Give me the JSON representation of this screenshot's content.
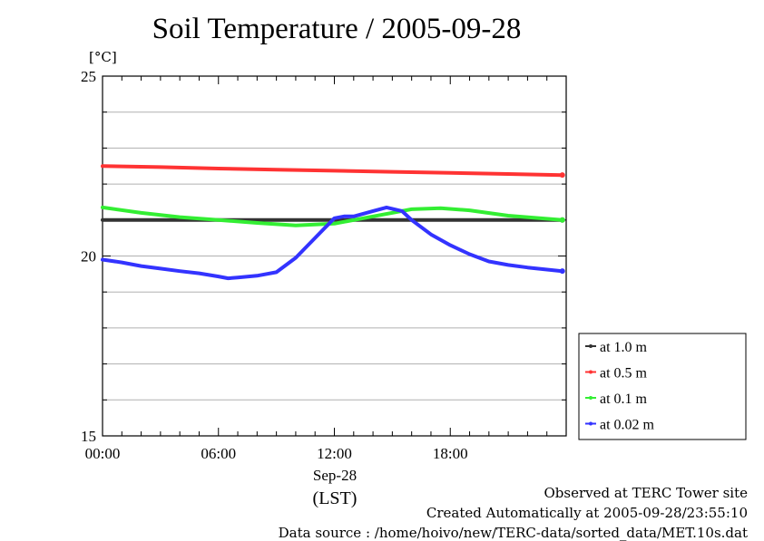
{
  "title": "Soil Temperature / 2005-09-28",
  "unit_label": "[°C]",
  "x_date_label": "Sep-28",
  "x_timezone_label": "(LST)",
  "footer": {
    "line1": "Observed at TERC Tower site",
    "line2": "Created Automatically at 2005-09-28/23:55:10",
    "line3": "Data source : /home/hoivo/new/TERC-data/sorted_data/MET.10s.dat"
  },
  "chart_data": {
    "type": "line",
    "title": "Soil Temperature / 2005-09-28",
    "ylabel": "[°C]",
    "xlabel": "Sep-28 (LST)",
    "xlim": [
      0,
      24
    ],
    "ylim": [
      15,
      25
    ],
    "x_ticks": [
      0,
      6,
      12,
      18
    ],
    "x_tick_labels": [
      "00:00",
      "06:00",
      "12:00",
      "18:00"
    ],
    "y_ticks": [
      15,
      20,
      25
    ],
    "y_tick_labels": [
      "15",
      "20",
      "25"
    ],
    "grid": true,
    "legend_position": "right",
    "series": [
      {
        "name": "at 1.0 m",
        "color": "#333333",
        "x": [
          0,
          3,
          6,
          9,
          12,
          15,
          18,
          21,
          23.8
        ],
        "y": [
          21.0,
          21.0,
          21.0,
          21.0,
          21.0,
          21.0,
          21.0,
          21.0,
          21.0
        ]
      },
      {
        "name": "at 0.5 m",
        "color": "#ff3333",
        "x": [
          0,
          3,
          6,
          9,
          12,
          15,
          18,
          21,
          23.8
        ],
        "y": [
          22.5,
          22.47,
          22.43,
          22.4,
          22.37,
          22.34,
          22.31,
          22.28,
          22.25
        ]
      },
      {
        "name": "at 0.1 m",
        "color": "#33ee33",
        "x": [
          0,
          2,
          4,
          6,
          8,
          10,
          12,
          14,
          16,
          17.5,
          19,
          21,
          23.8
        ],
        "y": [
          21.35,
          21.2,
          21.08,
          21.0,
          20.92,
          20.85,
          20.9,
          21.1,
          21.3,
          21.33,
          21.27,
          21.12,
          21.0
        ]
      },
      {
        "name": "at 0.02 m",
        "color": "#3333ff",
        "x": [
          0,
          1,
          2,
          3,
          4,
          5,
          6,
          6.5,
          7,
          8,
          9,
          10,
          11,
          12,
          12.5,
          13,
          14,
          14.7,
          15.5,
          16,
          17,
          18,
          19,
          20,
          21,
          22,
          23.8
        ],
        "y": [
          19.9,
          19.82,
          19.72,
          19.65,
          19.58,
          19.52,
          19.43,
          19.38,
          19.4,
          19.45,
          19.55,
          19.95,
          20.5,
          21.05,
          21.1,
          21.1,
          21.25,
          21.35,
          21.25,
          21.0,
          20.6,
          20.3,
          20.05,
          19.85,
          19.75,
          19.68,
          19.58
        ]
      }
    ]
  }
}
